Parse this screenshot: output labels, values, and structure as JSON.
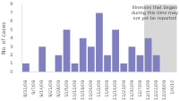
{
  "chart_data": {
    "type": "bar",
    "categories": [
      "8/31/09",
      "9/7/09",
      "9/14/09",
      "9/21/09",
      "9/28/09",
      "10/5/09",
      "10/12/09",
      "10/19/09",
      "10/26/09",
      "11/2/09",
      "11/9/09",
      "11/16/09",
      "11/23/09",
      "11/30/09",
      "12/7/09",
      "12/14/09",
      "12/21/09",
      "12/28/09",
      "1/4/10"
    ],
    "values": [
      1,
      0,
      3,
      0,
      2,
      5,
      1,
      4,
      3,
      7,
      2,
      5,
      1,
      3,
      2,
      4,
      2,
      0,
      0
    ],
    "color": "#8080c0",
    "ylabel": "No. of cases",
    "ylim": [
      0,
      8
    ],
    "yticks": [
      0,
      1,
      2,
      3,
      4,
      5,
      6,
      7,
      8
    ],
    "grid": false,
    "span": {
      "from": "12/14/09",
      "to": "1/4/10",
      "color": "#d8d8d8"
    },
    "annotation": "Illnesses that began\nduring this time may\nnot yet be reported"
  }
}
